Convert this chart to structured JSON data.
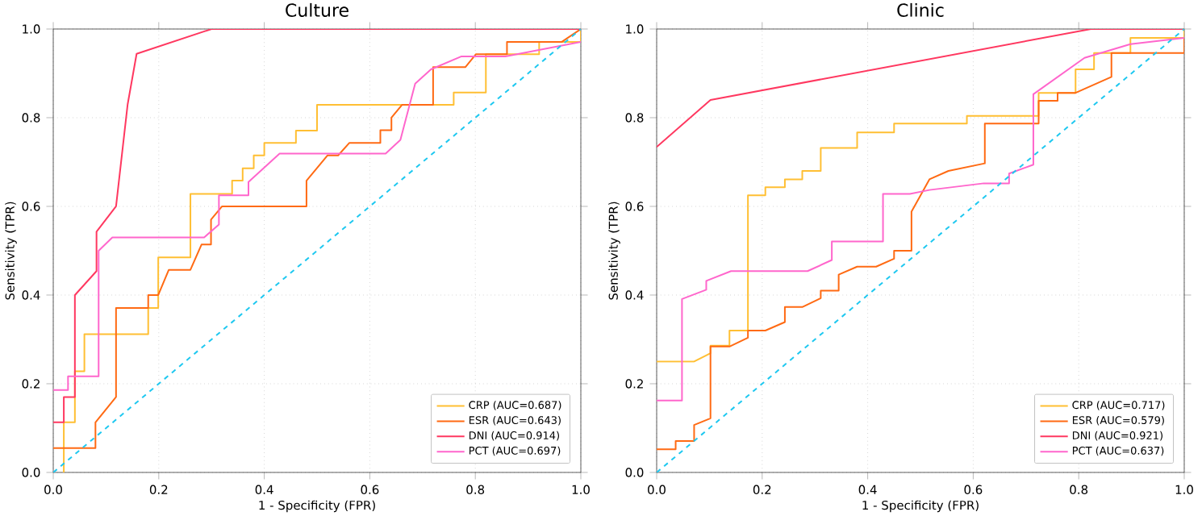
{
  "chart_data": [
    {
      "type": "line",
      "title": "Culture",
      "xlabel": "1 - Specificity (FPR)",
      "ylabel": "Sensitivity (TPR)",
      "xlim": [
        0,
        1
      ],
      "ylim": [
        0,
        1
      ],
      "xticks": [
        {
          "value": 0,
          "label": "0.0"
        },
        {
          "value": 0.2,
          "label": "0.2"
        },
        {
          "value": 0.4,
          "label": "0.4"
        },
        {
          "value": 0.6,
          "label": "0.6"
        },
        {
          "value": 0.8,
          "label": "0.8"
        },
        {
          "value": 1,
          "label": "1.0"
        }
      ],
      "yticks": [
        {
          "value": 0,
          "label": "0.0"
        },
        {
          "value": 0.2,
          "label": "0.2"
        },
        {
          "value": 0.4,
          "label": "0.4"
        },
        {
          "value": 0.6,
          "label": "0.6"
        },
        {
          "value": 0.8,
          "label": "0.8"
        },
        {
          "value": 1,
          "label": "1.0"
        }
      ],
      "grid": true,
      "legend": "bottom right",
      "series": [
        {
          "name": "CRP (AUC=0.687)",
          "color": "#ffbf33",
          "x": [
            0.02,
            0.02,
            0.041,
            0.041,
            0.059,
            0.059,
            0.18,
            0.18,
            0.199,
            0.199,
            0.26,
            0.26,
            0.339,
            0.339,
            0.359,
            0.359,
            0.38,
            0.38,
            0.4,
            0.4,
            0.46,
            0.46,
            0.5,
            0.5,
            0.759,
            0.759,
            0.82,
            0.82,
            0.921,
            0.921,
            1,
            1
          ],
          "values": [
            0,
            0.113,
            0.113,
            0.228,
            0.228,
            0.312,
            0.312,
            0.371,
            0.371,
            0.485,
            0.485,
            0.628,
            0.628,
            0.658,
            0.658,
            0.686,
            0.686,
            0.715,
            0.715,
            0.743,
            0.743,
            0.771,
            0.771,
            0.829,
            0.829,
            0.857,
            0.857,
            0.943,
            0.943,
            0.971,
            0.971,
            1
          ]
        },
        {
          "name": "ESR (AUC=0.643)",
          "color": "#ff6a13",
          "x": [
            0,
            0.08,
            0.08,
            0.119,
            0.119,
            0.18,
            0.18,
            0.199,
            0.219,
            0.26,
            0.281,
            0.299,
            0.299,
            0.32,
            0.48,
            0.48,
            0.52,
            0.54,
            0.561,
            0.62,
            0.62,
            0.641,
            0.641,
            0.661,
            0.72,
            0.72,
            0.781,
            0.801,
            0.86,
            0.86,
            0.964,
            1
          ],
          "values": [
            0.055,
            0.055,
            0.113,
            0.17,
            0.371,
            0.371,
            0.4,
            0.4,
            0.457,
            0.457,
            0.514,
            0.514,
            0.57,
            0.6,
            0.6,
            0.658,
            0.715,
            0.715,
            0.743,
            0.743,
            0.772,
            0.772,
            0.8,
            0.829,
            0.829,
            0.914,
            0.914,
            0.943,
            0.943,
            0.971,
            0.971,
            1
          ]
        },
        {
          "name": "DNI (AUC=0.914)",
          "color": "#ff3860",
          "x": [
            0,
            0.02,
            0.02,
            0.041,
            0.041,
            0.082,
            0.082,
            0.119,
            0.141,
            0.158,
            0.3,
            1
          ],
          "values": [
            0.113,
            0.113,
            0.17,
            0.17,
            0.4,
            0.454,
            0.543,
            0.6,
            0.83,
            0.944,
            1,
            1
          ]
        },
        {
          "name": "PCT (AUC=0.697)",
          "color": "#ff66cc",
          "x": [
            0,
            0.028,
            0.028,
            0.086,
            0.086,
            0.112,
            0.286,
            0.314,
            0.314,
            0.37,
            0.37,
            0.429,
            0.63,
            0.658,
            0.686,
            0.716,
            0.773,
            0.857,
            1
          ],
          "values": [
            0.186,
            0.186,
            0.217,
            0.217,
            0.5,
            0.53,
            0.53,
            0.559,
            0.625,
            0.625,
            0.655,
            0.719,
            0.719,
            0.75,
            0.877,
            0.909,
            0.938,
            0.938,
            0.971
          ]
        },
        {
          "color": "#1ec8f0",
          "line_style": "dashed",
          "x": [
            0,
            1
          ],
          "values": [
            0,
            1
          ]
        }
      ]
    },
    {
      "type": "line",
      "title": "Clinic",
      "xlabel": "1 - Specificity (FPR)",
      "ylabel": "Sensitivity (TPR)",
      "xlim": [
        0,
        1
      ],
      "ylim": [
        0,
        1
      ],
      "xticks": [
        {
          "value": 0,
          "label": "0.0"
        },
        {
          "value": 0.2,
          "label": "0.2"
        },
        {
          "value": 0.4,
          "label": "0.4"
        },
        {
          "value": 0.6,
          "label": "0.6"
        },
        {
          "value": 0.8,
          "label": "0.8"
        },
        {
          "value": 1,
          "label": "1.0"
        }
      ],
      "yticks": [
        {
          "value": 0,
          "label": "0.0"
        },
        {
          "value": 0.2,
          "label": "0.2"
        },
        {
          "value": 0.4,
          "label": "0.4"
        },
        {
          "value": 0.6,
          "label": "0.6"
        },
        {
          "value": 0.8,
          "label": "0.8"
        },
        {
          "value": 1,
          "label": "1.0"
        }
      ],
      "grid": true,
      "legend": "bottom right",
      "series": [
        {
          "name": "CRP (AUC=0.717)",
          "color": "#ffbf33",
          "x": [
            0,
            0.071,
            0.102,
            0.102,
            0.138,
            0.138,
            0.173,
            0.173,
            0.206,
            0.206,
            0.243,
            0.243,
            0.276,
            0.276,
            0.311,
            0.311,
            0.38,
            0.38,
            0.45,
            0.45,
            0.588,
            0.588,
            0.724,
            0.724,
            0.794,
            0.794,
            0.829,
            0.829,
            0.898,
            0.898,
            1,
            1
          ],
          "values": [
            0.25,
            0.25,
            0.269,
            0.286,
            0.286,
            0.32,
            0.32,
            0.625,
            0.625,
            0.643,
            0.643,
            0.661,
            0.661,
            0.68,
            0.68,
            0.732,
            0.732,
            0.767,
            0.767,
            0.787,
            0.787,
            0.804,
            0.804,
            0.856,
            0.856,
            0.909,
            0.909,
            0.946,
            0.946,
            0.98,
            0.98,
            1
          ]
        },
        {
          "name": "ESR (AUC=0.579)",
          "color": "#ff6a13",
          "x": [
            0,
            0.036,
            0.036,
            0.071,
            0.071,
            0.102,
            0.102,
            0.138,
            0.173,
            0.173,
            0.206,
            0.243,
            0.243,
            0.276,
            0.311,
            0.311,
            0.345,
            0.345,
            0.38,
            0.416,
            0.45,
            0.45,
            0.483,
            0.483,
            0.517,
            0.553,
            0.622,
            0.622,
            0.724,
            0.724,
            0.76,
            0.76,
            0.794,
            0.862,
            0.862,
            1,
            1
          ],
          "values": [
            0.052,
            0.052,
            0.071,
            0.071,
            0.107,
            0.122,
            0.284,
            0.284,
            0.304,
            0.32,
            0.32,
            0.339,
            0.373,
            0.373,
            0.393,
            0.41,
            0.41,
            0.446,
            0.464,
            0.464,
            0.482,
            0.5,
            0.5,
            0.588,
            0.661,
            0.68,
            0.697,
            0.787,
            0.787,
            0.838,
            0.838,
            0.856,
            0.856,
            0.892,
            0.946,
            0.946,
            0.98
          ]
        },
        {
          "name": "DNI (AUC=0.921)",
          "color": "#ff3860",
          "x": [
            0,
            0.102,
            0.823,
            1
          ],
          "values": [
            0.734,
            0.84,
            1,
            1
          ]
        },
        {
          "name": "PCT (AUC=0.637)",
          "color": "#ff66cc",
          "x": [
            0,
            0.048,
            0.048,
            0.094,
            0.094,
            0.141,
            0.286,
            0.332,
            0.332,
            0.429,
            0.429,
            0.48,
            0.517,
            0.62,
            0.668,
            0.668,
            0.714,
            0.714,
            0.811,
            0.898,
            1
          ],
          "values": [
            0.162,
            0.162,
            0.391,
            0.412,
            0.432,
            0.454,
            0.454,
            0.479,
            0.521,
            0.521,
            0.628,
            0.628,
            0.637,
            0.652,
            0.652,
            0.674,
            0.694,
            0.853,
            0.935,
            0.966,
            0.98
          ]
        },
        {
          "color": "#1ec8f0",
          "line_style": "dashed",
          "x": [
            0,
            1
          ],
          "values": [
            0,
            1
          ]
        }
      ]
    }
  ]
}
